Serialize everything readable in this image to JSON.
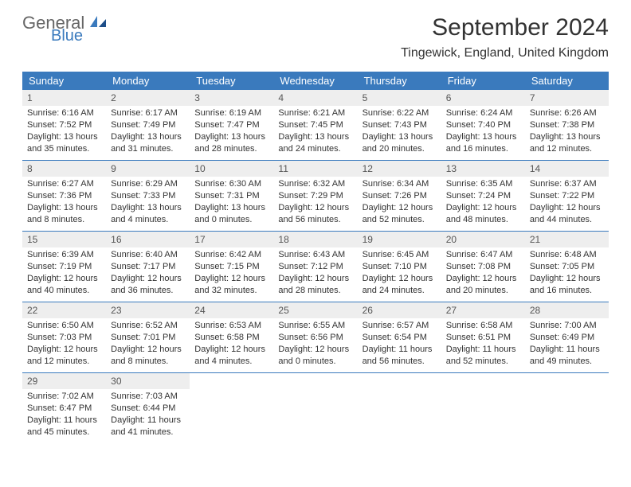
{
  "logo": {
    "text1": "General",
    "text2": "Blue"
  },
  "header": {
    "title": "September 2024",
    "location": "Tingewick, England, United Kingdom"
  },
  "colors": {
    "header_bg": "#3a7abd",
    "header_text": "#ffffff",
    "daynum_bg": "#eeeeee",
    "week_border": "#3a7abd",
    "body_text": "#333333"
  },
  "day_names": [
    "Sunday",
    "Monday",
    "Tuesday",
    "Wednesday",
    "Thursday",
    "Friday",
    "Saturday"
  ],
  "weeks": [
    [
      {
        "n": "1",
        "sr": "Sunrise: 6:16 AM",
        "ss": "Sunset: 7:52 PM",
        "dl1": "Daylight: 13 hours",
        "dl2": "and 35 minutes."
      },
      {
        "n": "2",
        "sr": "Sunrise: 6:17 AM",
        "ss": "Sunset: 7:49 PM",
        "dl1": "Daylight: 13 hours",
        "dl2": "and 31 minutes."
      },
      {
        "n": "3",
        "sr": "Sunrise: 6:19 AM",
        "ss": "Sunset: 7:47 PM",
        "dl1": "Daylight: 13 hours",
        "dl2": "and 28 minutes."
      },
      {
        "n": "4",
        "sr": "Sunrise: 6:21 AM",
        "ss": "Sunset: 7:45 PM",
        "dl1": "Daylight: 13 hours",
        "dl2": "and 24 minutes."
      },
      {
        "n": "5",
        "sr": "Sunrise: 6:22 AM",
        "ss": "Sunset: 7:43 PM",
        "dl1": "Daylight: 13 hours",
        "dl2": "and 20 minutes."
      },
      {
        "n": "6",
        "sr": "Sunrise: 6:24 AM",
        "ss": "Sunset: 7:40 PM",
        "dl1": "Daylight: 13 hours",
        "dl2": "and 16 minutes."
      },
      {
        "n": "7",
        "sr": "Sunrise: 6:26 AM",
        "ss": "Sunset: 7:38 PM",
        "dl1": "Daylight: 13 hours",
        "dl2": "and 12 minutes."
      }
    ],
    [
      {
        "n": "8",
        "sr": "Sunrise: 6:27 AM",
        "ss": "Sunset: 7:36 PM",
        "dl1": "Daylight: 13 hours",
        "dl2": "and 8 minutes."
      },
      {
        "n": "9",
        "sr": "Sunrise: 6:29 AM",
        "ss": "Sunset: 7:33 PM",
        "dl1": "Daylight: 13 hours",
        "dl2": "and 4 minutes."
      },
      {
        "n": "10",
        "sr": "Sunrise: 6:30 AM",
        "ss": "Sunset: 7:31 PM",
        "dl1": "Daylight: 13 hours",
        "dl2": "and 0 minutes."
      },
      {
        "n": "11",
        "sr": "Sunrise: 6:32 AM",
        "ss": "Sunset: 7:29 PM",
        "dl1": "Daylight: 12 hours",
        "dl2": "and 56 minutes."
      },
      {
        "n": "12",
        "sr": "Sunrise: 6:34 AM",
        "ss": "Sunset: 7:26 PM",
        "dl1": "Daylight: 12 hours",
        "dl2": "and 52 minutes."
      },
      {
        "n": "13",
        "sr": "Sunrise: 6:35 AM",
        "ss": "Sunset: 7:24 PM",
        "dl1": "Daylight: 12 hours",
        "dl2": "and 48 minutes."
      },
      {
        "n": "14",
        "sr": "Sunrise: 6:37 AM",
        "ss": "Sunset: 7:22 PM",
        "dl1": "Daylight: 12 hours",
        "dl2": "and 44 minutes."
      }
    ],
    [
      {
        "n": "15",
        "sr": "Sunrise: 6:39 AM",
        "ss": "Sunset: 7:19 PM",
        "dl1": "Daylight: 12 hours",
        "dl2": "and 40 minutes."
      },
      {
        "n": "16",
        "sr": "Sunrise: 6:40 AM",
        "ss": "Sunset: 7:17 PM",
        "dl1": "Daylight: 12 hours",
        "dl2": "and 36 minutes."
      },
      {
        "n": "17",
        "sr": "Sunrise: 6:42 AM",
        "ss": "Sunset: 7:15 PM",
        "dl1": "Daylight: 12 hours",
        "dl2": "and 32 minutes."
      },
      {
        "n": "18",
        "sr": "Sunrise: 6:43 AM",
        "ss": "Sunset: 7:12 PM",
        "dl1": "Daylight: 12 hours",
        "dl2": "and 28 minutes."
      },
      {
        "n": "19",
        "sr": "Sunrise: 6:45 AM",
        "ss": "Sunset: 7:10 PM",
        "dl1": "Daylight: 12 hours",
        "dl2": "and 24 minutes."
      },
      {
        "n": "20",
        "sr": "Sunrise: 6:47 AM",
        "ss": "Sunset: 7:08 PM",
        "dl1": "Daylight: 12 hours",
        "dl2": "and 20 minutes."
      },
      {
        "n": "21",
        "sr": "Sunrise: 6:48 AM",
        "ss": "Sunset: 7:05 PM",
        "dl1": "Daylight: 12 hours",
        "dl2": "and 16 minutes."
      }
    ],
    [
      {
        "n": "22",
        "sr": "Sunrise: 6:50 AM",
        "ss": "Sunset: 7:03 PM",
        "dl1": "Daylight: 12 hours",
        "dl2": "and 12 minutes."
      },
      {
        "n": "23",
        "sr": "Sunrise: 6:52 AM",
        "ss": "Sunset: 7:01 PM",
        "dl1": "Daylight: 12 hours",
        "dl2": "and 8 minutes."
      },
      {
        "n": "24",
        "sr": "Sunrise: 6:53 AM",
        "ss": "Sunset: 6:58 PM",
        "dl1": "Daylight: 12 hours",
        "dl2": "and 4 minutes."
      },
      {
        "n": "25",
        "sr": "Sunrise: 6:55 AM",
        "ss": "Sunset: 6:56 PM",
        "dl1": "Daylight: 12 hours",
        "dl2": "and 0 minutes."
      },
      {
        "n": "26",
        "sr": "Sunrise: 6:57 AM",
        "ss": "Sunset: 6:54 PM",
        "dl1": "Daylight: 11 hours",
        "dl2": "and 56 minutes."
      },
      {
        "n": "27",
        "sr": "Sunrise: 6:58 AM",
        "ss": "Sunset: 6:51 PM",
        "dl1": "Daylight: 11 hours",
        "dl2": "and 52 minutes."
      },
      {
        "n": "28",
        "sr": "Sunrise: 7:00 AM",
        "ss": "Sunset: 6:49 PM",
        "dl1": "Daylight: 11 hours",
        "dl2": "and 49 minutes."
      }
    ],
    [
      {
        "n": "29",
        "sr": "Sunrise: 7:02 AM",
        "ss": "Sunset: 6:47 PM",
        "dl1": "Daylight: 11 hours",
        "dl2": "and 45 minutes."
      },
      {
        "n": "30",
        "sr": "Sunrise: 7:03 AM",
        "ss": "Sunset: 6:44 PM",
        "dl1": "Daylight: 11 hours",
        "dl2": "and 41 minutes."
      },
      null,
      null,
      null,
      null,
      null
    ]
  ]
}
